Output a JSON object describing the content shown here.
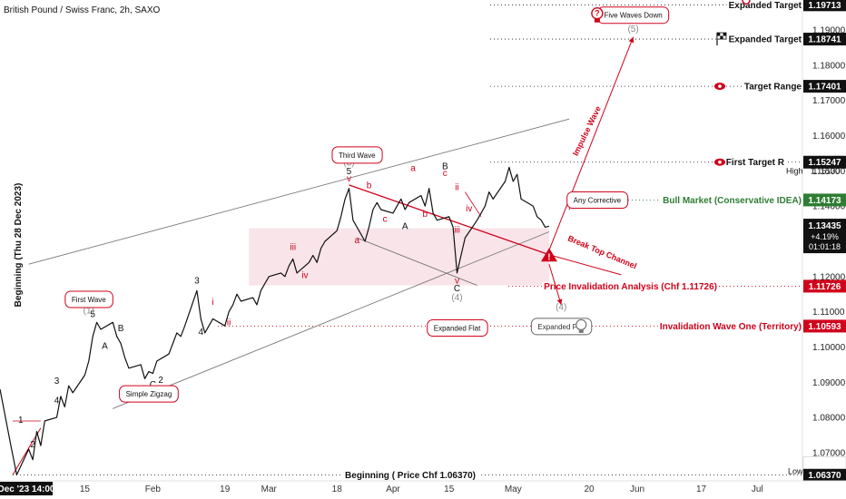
{
  "header": {
    "title": "British Pound / Swiss Franc, 2h, SAXO"
  },
  "vertical_label": "Beginning (Thu 28 Dec 2023)",
  "colors": {
    "red": "#d0021b",
    "green": "#2e7d32",
    "black": "#111111",
    "gray": "#777777",
    "zone": "#f6dde3"
  },
  "chart_data": {
    "type": "line",
    "title": "British Pound / Swiss Franc, 2h, SAXO",
    "y_axis": {
      "min": 1.062,
      "max": 1.1985,
      "ticks": [
        "1.19000",
        "1.18000",
        "1.17000",
        "1.16000",
        "1.15000",
        "1.14000",
        "1.13000",
        "1.12000",
        "1.11000",
        "1.10000",
        "1.09000",
        "1.08000",
        "1.07000"
      ]
    },
    "x_axis": {
      "ticks": [
        "Dec '23  14:00",
        "15",
        "Feb",
        "19",
        "Mar",
        "18",
        "Apr",
        "15",
        "May",
        "20",
        "Jun",
        "17",
        "Jul"
      ],
      "first_label": "Dec '23  14:00"
    },
    "price_series": [
      [
        "2023-12-28",
        1.088
      ],
      [
        "2023-12-28",
        1.072
      ],
      [
        "2023-12-29",
        1.0637
      ],
      [
        "2024-01-01",
        1.071
      ],
      [
        "2024-01-02",
        1.068
      ],
      [
        "2024-01-03",
        1.076
      ],
      [
        "2024-01-04",
        1.072
      ],
      [
        "2024-01-05",
        1.079
      ],
      [
        "2024-01-08",
        1.08
      ],
      [
        "2024-01-09",
        1.086
      ],
      [
        "2024-01-10",
        1.083
      ],
      [
        "2024-01-11",
        1.089
      ],
      [
        "2024-01-12",
        1.087
      ],
      [
        "2024-01-15",
        1.092
      ],
      [
        "2024-01-16",
        1.096
      ],
      [
        "2024-01-17",
        1.103
      ],
      [
        "2024-01-18",
        1.107
      ],
      [
        "2024-01-19",
        1.105
      ],
      [
        "2024-01-22",
        1.107
      ],
      [
        "2024-01-23",
        1.103
      ],
      [
        "2024-01-24",
        1.101
      ],
      [
        "2024-01-25",
        1.097
      ],
      [
        "2024-01-26",
        1.094
      ],
      [
        "2024-01-29",
        1.095
      ],
      [
        "2024-01-30",
        1.091
      ],
      [
        "2024-01-31",
        1.093
      ],
      [
        "2024-02-01",
        1.0925
      ],
      [
        "2024-02-02",
        1.096
      ],
      [
        "2024-02-05",
        1.098
      ],
      [
        "2024-02-06",
        1.101
      ],
      [
        "2024-02-07",
        1.104
      ],
      [
        "2024-02-08",
        1.103
      ],
      [
        "2024-02-09",
        1.106
      ],
      [
        "2024-02-12",
        1.116
      ],
      [
        "2024-02-13",
        1.108
      ],
      [
        "2024-02-14",
        1.104
      ],
      [
        "2024-02-15",
        1.106
      ],
      [
        "2024-02-16",
        1.108
      ],
      [
        "2024-02-19",
        1.106
      ],
      [
        "2024-02-20",
        1.11
      ],
      [
        "2024-02-21",
        1.112
      ],
      [
        "2024-02-22",
        1.115
      ],
      [
        "2024-02-23",
        1.113
      ],
      [
        "2024-02-26",
        1.114
      ],
      [
        "2024-02-27",
        1.112
      ],
      [
        "2024-02-28",
        1.116
      ],
      [
        "2024-02-29",
        1.118
      ],
      [
        "2024-03-01",
        1.12
      ],
      [
        "2024-03-04",
        1.121
      ],
      [
        "2024-03-05",
        1.12
      ],
      [
        "2024-03-06",
        1.123
      ],
      [
        "2024-03-07",
        1.125
      ],
      [
        "2024-03-08",
        1.121
      ],
      [
        "2024-03-11",
        1.124
      ],
      [
        "2024-03-12",
        1.126
      ],
      [
        "2024-03-13",
        1.124
      ],
      [
        "2024-03-14",
        1.128
      ],
      [
        "2024-03-15",
        1.13
      ],
      [
        "2024-03-18",
        1.133
      ],
      [
        "2024-03-19",
        1.137
      ],
      [
        "2024-03-20",
        1.142
      ],
      [
        "2024-03-21",
        1.145
      ],
      [
        "2024-03-22",
        1.136
      ],
      [
        "2024-03-25",
        1.13
      ],
      [
        "2024-03-26",
        1.134
      ],
      [
        "2024-03-27",
        1.139
      ],
      [
        "2024-03-28",
        1.141
      ],
      [
        "2024-03-29",
        1.139
      ],
      [
        "2024-04-01",
        1.138
      ],
      [
        "2024-04-02",
        1.14
      ],
      [
        "2024-04-03",
        1.142
      ],
      [
        "2024-04-04",
        1.139
      ],
      [
        "2024-04-05",
        1.141
      ],
      [
        "2024-04-08",
        1.143
      ],
      [
        "2024-04-09",
        1.14
      ],
      [
        "2024-04-10",
        1.145
      ],
      [
        "2024-04-11",
        1.138
      ],
      [
        "2024-04-12",
        1.136
      ],
      [
        "2024-04-15",
        1.137
      ],
      [
        "2024-04-16",
        1.134
      ],
      [
        "2024-04-17",
        1.121
      ],
      [
        "2024-04-18",
        1.126
      ],
      [
        "2024-04-19",
        1.131
      ],
      [
        "2024-04-22",
        1.136
      ],
      [
        "2024-04-23",
        1.138
      ],
      [
        "2024-04-24",
        1.14
      ],
      [
        "2024-04-25",
        1.144
      ],
      [
        "2024-04-26",
        1.142
      ],
      [
        "2024-04-29",
        1.147
      ],
      [
        "2024-04-30",
        1.151
      ],
      [
        "2024-05-01",
        1.147
      ],
      [
        "2024-05-02",
        1.149
      ],
      [
        "2024-05-03",
        1.142
      ],
      [
        "2024-05-06",
        1.14
      ],
      [
        "2024-05-07",
        1.137
      ],
      [
        "2024-05-08",
        1.136
      ],
      [
        "2024-05-09",
        1.134
      ],
      [
        "2024-05-10",
        1.1343
      ]
    ],
    "channel": {
      "upper": [
        [
          "2024-01-01",
          1.1235
        ],
        [
          "2024-05-15",
          1.1647
        ]
      ],
      "lower": [
        [
          "2024-01-22",
          1.0825
        ],
        [
          "2024-05-10",
          1.1327
        ]
      ]
    },
    "zone": {
      "x": [
        "2024-02-25",
        "2024-05-10"
      ],
      "y": [
        1.1175,
        1.1337
      ]
    },
    "levels": [
      {
        "label": "Expanded Target",
        "value": "1.19713",
        "y": 1.19713,
        "color": "#111111"
      },
      {
        "label": "Expanded Target",
        "value": "1.18741",
        "y": 1.18741,
        "color": "#111111"
      },
      {
        "label": "Target Range",
        "value": "1.17401",
        "y": 1.17401,
        "color": "#111111"
      },
      {
        "label": "First Target R",
        "value": "1.15247",
        "y": 1.15247,
        "color": "#111111"
      },
      {
        "label": "Bull Market (Conservative IDEA)",
        "value": "1.14173",
        "y": 1.14173,
        "color": "#2e7d32"
      },
      {
        "label": "Price Invalidation Analysis (Chf 1.11726)",
        "value": "1.11726",
        "y": 1.11726,
        "color": "#d0021b"
      },
      {
        "label": "Invalidation Wave One (Territory)",
        "value": "1.10593",
        "y": 1.10593,
        "color": "#d0021b"
      },
      {
        "label": "Beginning ( Price Chf 1.06370)",
        "value": "1.06370",
        "y": 1.0637,
        "color": "#111111"
      }
    ],
    "high_label": {
      "label": "High",
      "value": "1.15130",
      "y": 1.1513
    },
    "low_label": {
      "label": "Low",
      "value": "1.06370",
      "y": 1.0637
    },
    "last_price": {
      "value": "1.13435",
      "change": "+4.19%",
      "countdown": "01:01:18",
      "y": 1.13435
    },
    "callouts": [
      {
        "text": "First Wave",
        "x": "2024-01-16",
        "y": 1.1135
      },
      {
        "text": "Simple Zigzag",
        "x": "2024-01-31",
        "y": 1.0867
      },
      {
        "text": "Third Wave",
        "x": "2024-03-23",
        "y": 1.1545
      },
      {
        "text": "Expanded Flat",
        "x": "2024-04-17",
        "y": 1.1054
      },
      {
        "text": "Five Waves Down",
        "x": "2024-05-31",
        "y": 1.1942
      },
      {
        "text": "Any Corrective",
        "x": "2024-05-22",
        "y": 1.1417
      },
      {
        "text": "Expanded Flat",
        "x": "2024-05-13",
        "y": 1.1058
      }
    ],
    "annotations": [
      {
        "text": "Impulse Wave",
        "x": "2024-05-20",
        "y": 1.161,
        "rotate": -64
      },
      {
        "text": "Break Top Channel",
        "x": "2024-05-23",
        "y": 1.1262,
        "rotate": 23
      }
    ],
    "wave_labels": [
      {
        "t": "1",
        "x": "2023-12-30",
        "y": 1.0785,
        "c": "black"
      },
      {
        "t": "2",
        "x": "2024-01-02",
        "y": 1.0715,
        "c": "black"
      },
      {
        "t": "3",
        "x": "2024-01-08",
        "y": 1.0895,
        "c": "black"
      },
      {
        "t": "4",
        "x": "2024-01-08",
        "y": 1.084,
        "c": "black"
      },
      {
        "t": "5",
        "x": "2024-01-17",
        "y": 1.1085,
        "c": "black"
      },
      {
        "t": "(1)",
        "x": "2024-01-16",
        "y": 1.1095,
        "c": "gray"
      },
      {
        "t": "A",
        "x": "2024-01-20",
        "y": 1.0995,
        "c": "black"
      },
      {
        "t": "B",
        "x": "2024-01-24",
        "y": 1.1045,
        "c": "black"
      },
      {
        "t": "C",
        "x": "2024-02-01",
        "y": 1.0885,
        "c": "black"
      },
      {
        "t": "(2)",
        "x": "2024-02-01",
        "y": 1.0861,
        "c": "gray"
      },
      {
        "t": "2",
        "x": "2024-02-03",
        "y": 1.0898,
        "c": "black"
      },
      {
        "t": "3",
        "x": "2024-02-12",
        "y": 1.118,
        "c": "black"
      },
      {
        "t": "4",
        "x": "2024-02-13",
        "y": 1.1035,
        "c": "black"
      },
      {
        "t": "i",
        "x": "2024-02-16",
        "y": 1.112,
        "c": "red"
      },
      {
        "t": "ii",
        "x": "2024-02-20",
        "y": 1.1062,
        "c": "red"
      },
      {
        "t": "iii",
        "x": "2024-03-07",
        "y": 1.1275,
        "c": "red"
      },
      {
        "t": "iv",
        "x": "2024-03-10",
        "y": 1.1195,
        "c": "red"
      },
      {
        "t": "v",
        "x": "2024-03-21",
        "y": 1.147,
        "c": "red"
      },
      {
        "t": "5",
        "x": "2024-03-21",
        "y": 1.149,
        "c": "black"
      },
      {
        "t": "(3)",
        "x": "2024-03-21",
        "y": 1.1515,
        "c": "gray"
      },
      {
        "t": "a",
        "x": "2024-03-23",
        "y": 1.1295,
        "c": "red"
      },
      {
        "t": "b",
        "x": "2024-03-26",
        "y": 1.145,
        "c": "red"
      },
      {
        "t": "c",
        "x": "2024-03-30",
        "y": 1.1355,
        "c": "red"
      },
      {
        "t": "A",
        "x": "2024-04-04",
        "y": 1.1335,
        "c": "black"
      },
      {
        "t": "a",
        "x": "2024-04-06",
        "y": 1.15,
        "c": "red"
      },
      {
        "t": "b",
        "x": "2024-04-09",
        "y": 1.137,
        "c": "red"
      },
      {
        "t": "B",
        "x": "2024-04-14",
        "y": 1.1505,
        "c": "black"
      },
      {
        "t": "c",
        "x": "2024-04-14",
        "y": 1.1485,
        "c": "red"
      },
      {
        "t": "ii",
        "x": "2024-04-17",
        "y": 1.1445,
        "c": "red"
      },
      {
        "t": "iii",
        "x": "2024-04-17",
        "y": 1.1325,
        "c": "red"
      },
      {
        "t": "iv",
        "x": "2024-04-20",
        "y": 1.1385,
        "c": "red"
      },
      {
        "t": "v",
        "x": "2024-04-17",
        "y": 1.118,
        "c": "red"
      },
      {
        "t": "C",
        "x": "2024-04-17",
        "y": 1.1158,
        "c": "black"
      },
      {
        "t": "(4)",
        "x": "2024-04-17",
        "y": 1.1133,
        "c": "gray"
      },
      {
        "t": "(4)",
        "x": "2024-05-13",
        "y": 1.1105,
        "c": "gray"
      },
      {
        "t": "(5)",
        "x": "2024-05-31",
        "y": 1.1895,
        "c": "gray"
      }
    ]
  }
}
